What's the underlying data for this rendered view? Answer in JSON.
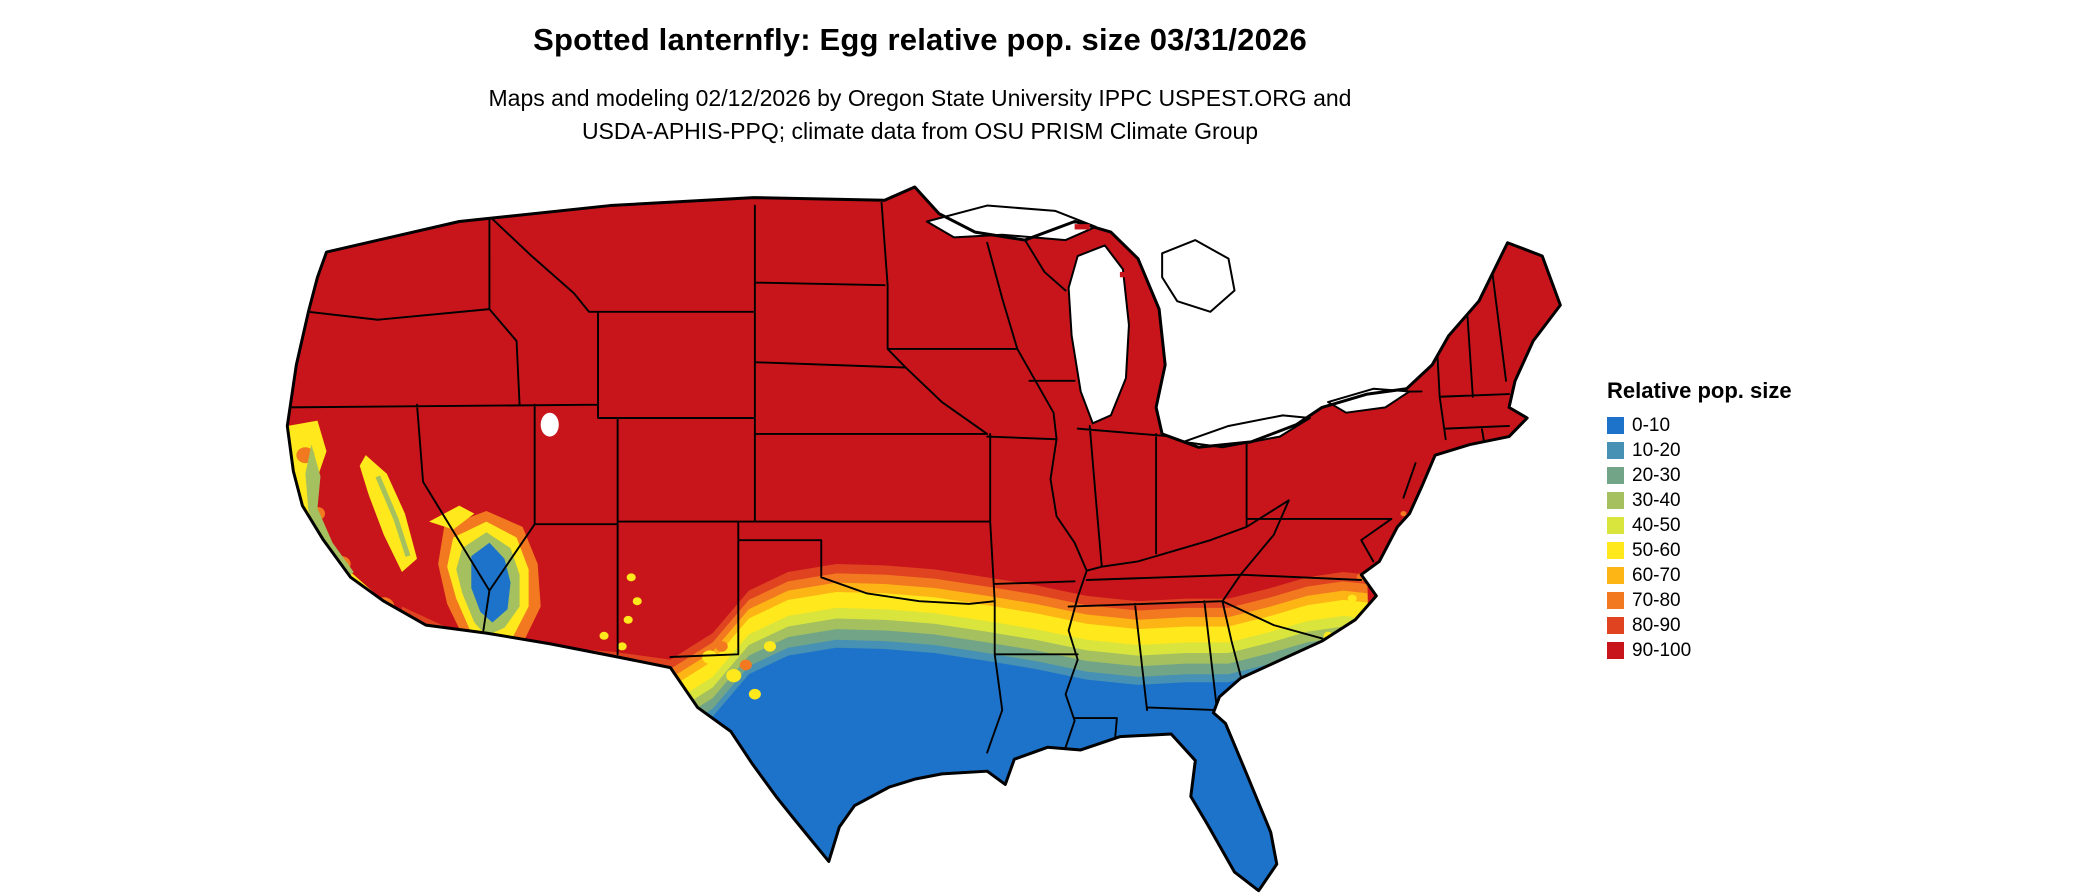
{
  "header": {
    "title": "Spotted lanternfly: Egg relative pop. size 03/31/2026",
    "subtitle_line1": "Maps and modeling 02/12/2026 by Oregon State University IPPC USPEST.ORG and",
    "subtitle_line2": "USDA-APHIS-PPQ; climate data from OSU PRISM Climate Group"
  },
  "legend": {
    "title": "Relative pop. size",
    "entries": [
      {
        "label": "0-10",
        "color": "#1d72c9"
      },
      {
        "label": "10-20",
        "color": "#4691b4"
      },
      {
        "label": "20-30",
        "color": "#72a587"
      },
      {
        "label": "30-40",
        "color": "#a4c05f"
      },
      {
        "label": "40-50",
        "color": "#d9e53c"
      },
      {
        "label": "50-60",
        "color": "#ffe81b"
      },
      {
        "label": "60-70",
        "color": "#fdb515"
      },
      {
        "label": "70-80",
        "color": "#f2791f"
      },
      {
        "label": "80-90",
        "color": "#df4320"
      },
      {
        "label": "90-100",
        "color": "#c8151b"
      }
    ]
  },
  "map": {
    "region": "Contiguous United States",
    "water_color": "#ffffff",
    "boundary_color": "#000000",
    "background_color": "#ffffff"
  },
  "chart_data": {
    "type": "choropleth-map",
    "title": "Spotted lanternfly: Egg relative pop. size 03/31/2026",
    "variable": "Relative pop. size",
    "date_shown": "03/31/2026",
    "model_date": "02/12/2026",
    "bins": [
      "0-10",
      "10-20",
      "20-30",
      "30-40",
      "40-50",
      "50-60",
      "60-70",
      "70-80",
      "80-90",
      "90-100"
    ],
    "bin_colors": [
      "#1d72c9",
      "#4691b4",
      "#72a587",
      "#a4c05f",
      "#d9e53c",
      "#ffe81b",
      "#fdb515",
      "#f2791f",
      "#df4320",
      "#c8151b"
    ],
    "legend_position": "right",
    "spatial_pattern": {
      "90-100": "Dominant class over most of the map: Pacific Northwest, Rockies, Great Plains, Midwest, Northeast and mid-South are solid red",
      "transition": "Narrow south-trending gradient band (orange to yellow to green to teal) across Oklahoma, central Texas, the Gulf states, south Georgia and the coastal Carolinas",
      "0-10": "Blue across south Texas, the Gulf Coast, the Florida peninsula, central Arizona highlands and small southern California coastal spots",
      "local_features": "California coast and Sierra Nevada show yellow/orange/green mottling; scattered yellow-orange speckles in west Texas, New Mexico and along the southeast coast; Great Lakes and Great Salt Lake shown as white water"
    }
  }
}
